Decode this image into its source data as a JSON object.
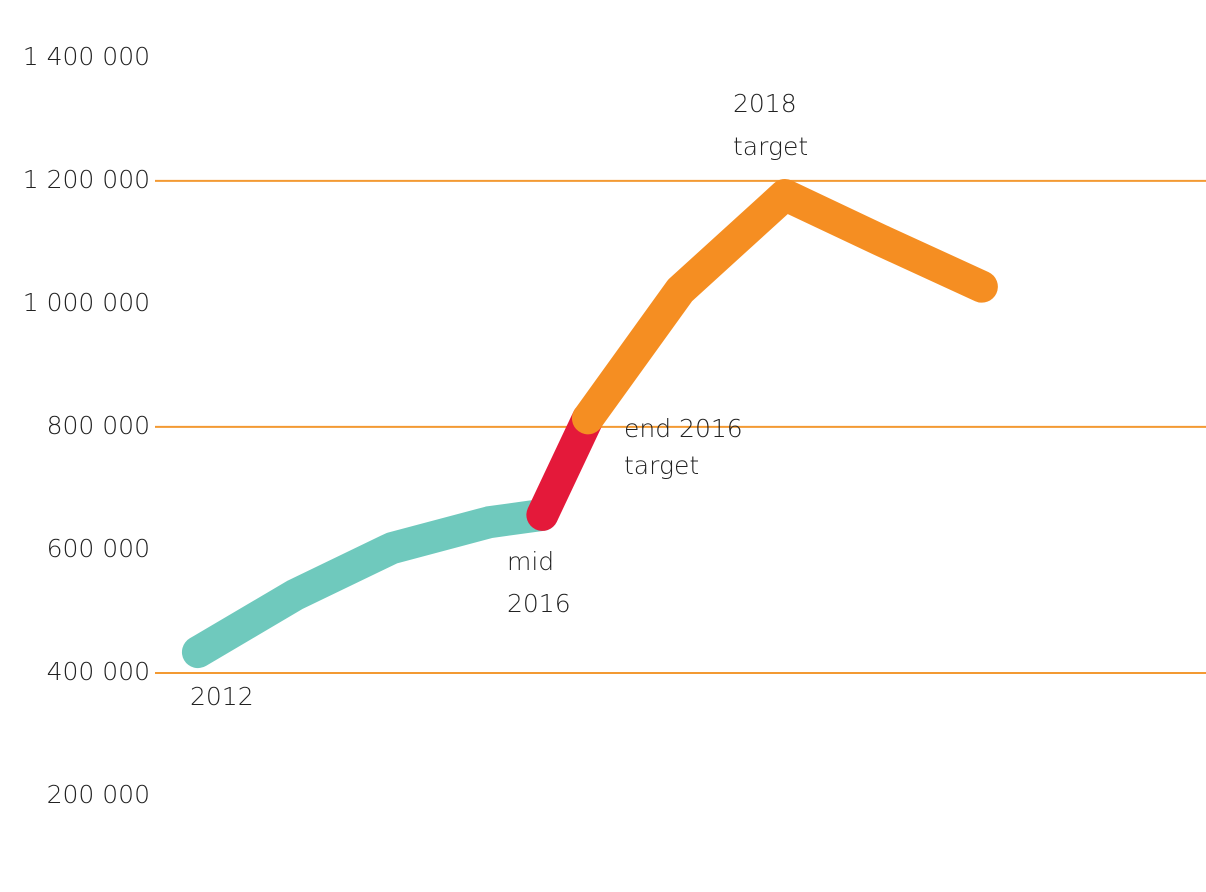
{
  "chart_data": {
    "type": "line",
    "yticks": [
      {
        "value": 200000,
        "label": "200 000"
      },
      {
        "value": 400000,
        "label": "400 000"
      },
      {
        "value": 600000,
        "label": "600 000"
      },
      {
        "value": 800000,
        "label": "800 000"
      },
      {
        "value": 1000000,
        "label": "1 000 000"
      },
      {
        "value": 1200000,
        "label": "1 200 000"
      },
      {
        "value": 1400000,
        "label": "1 400 000"
      }
    ],
    "ylim": [
      44000,
      1494000
    ],
    "xlim": [
      -2.04,
      10.39
    ],
    "gridlines": [
      400000,
      800000,
      1200000
    ],
    "grid_color": "#f39a33",
    "series": [
      {
        "color": "#6fc9bd",
        "x": [
          0,
          1,
          2,
          3,
          3.55
        ],
        "values": [
          434000,
          527000,
          603000,
          645000,
          657000
        ]
      },
      {
        "color": "#e4193a",
        "x": [
          3.55,
          4.02
        ],
        "values": [
          657000,
          814000
        ]
      },
      {
        "color": "#f58e22",
        "x": [
          4.02,
          4.97,
          6.05,
          7.03,
          8.08
        ],
        "values": [
          814000,
          1022000,
          1177000,
          1104000,
          1028000
        ]
      }
    ],
    "annotations": [
      {
        "lines": [
          "2012"
        ]
      },
      {
        "lines": [
          "mid",
          "2016"
        ]
      },
      {
        "lines": [
          "end 2016",
          "target"
        ]
      },
      {
        "lines": [
          "2018",
          "target"
        ]
      }
    ]
  }
}
